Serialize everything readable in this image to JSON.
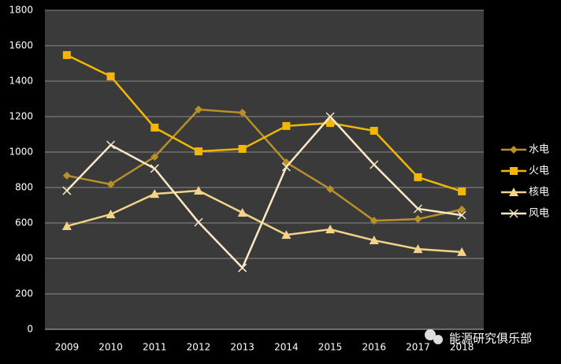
{
  "chart_data": {
    "type": "line",
    "categories": [
      "2009",
      "2010",
      "2011",
      "2012",
      "2013",
      "2014",
      "2015",
      "2016",
      "2017",
      "2018"
    ],
    "series": [
      {
        "name": "水电",
        "color": "#b8902a",
        "marker": "diamond",
        "values": [
          867,
          818,
          973,
          1240,
          1222,
          942,
          791,
          613,
          622,
          676
        ]
      },
      {
        "name": "火电",
        "color": "#f2b705",
        "marker": "square",
        "values": [
          1547,
          1427,
          1138,
          1004,
          1018,
          1147,
          1164,
          1120,
          858,
          778
        ]
      },
      {
        "name": "核电",
        "color": "#f3d487",
        "marker": "triangle",
        "values": [
          582,
          649,
          764,
          782,
          658,
          533,
          564,
          502,
          453,
          436
        ]
      },
      {
        "name": "风电",
        "color": "#fbe8c6",
        "marker": "x",
        "values": [
          782,
          1040,
          907,
          604,
          347,
          916,
          1200,
          929,
          680,
          644
        ]
      }
    ],
    "ylim": [
      0,
      1800
    ],
    "yticks": [
      0,
      200,
      400,
      600,
      800,
      1000,
      1200,
      1400,
      1600,
      1800
    ],
    "grid": true,
    "legend": "right",
    "watermark": "能源研究俱乐部"
  }
}
